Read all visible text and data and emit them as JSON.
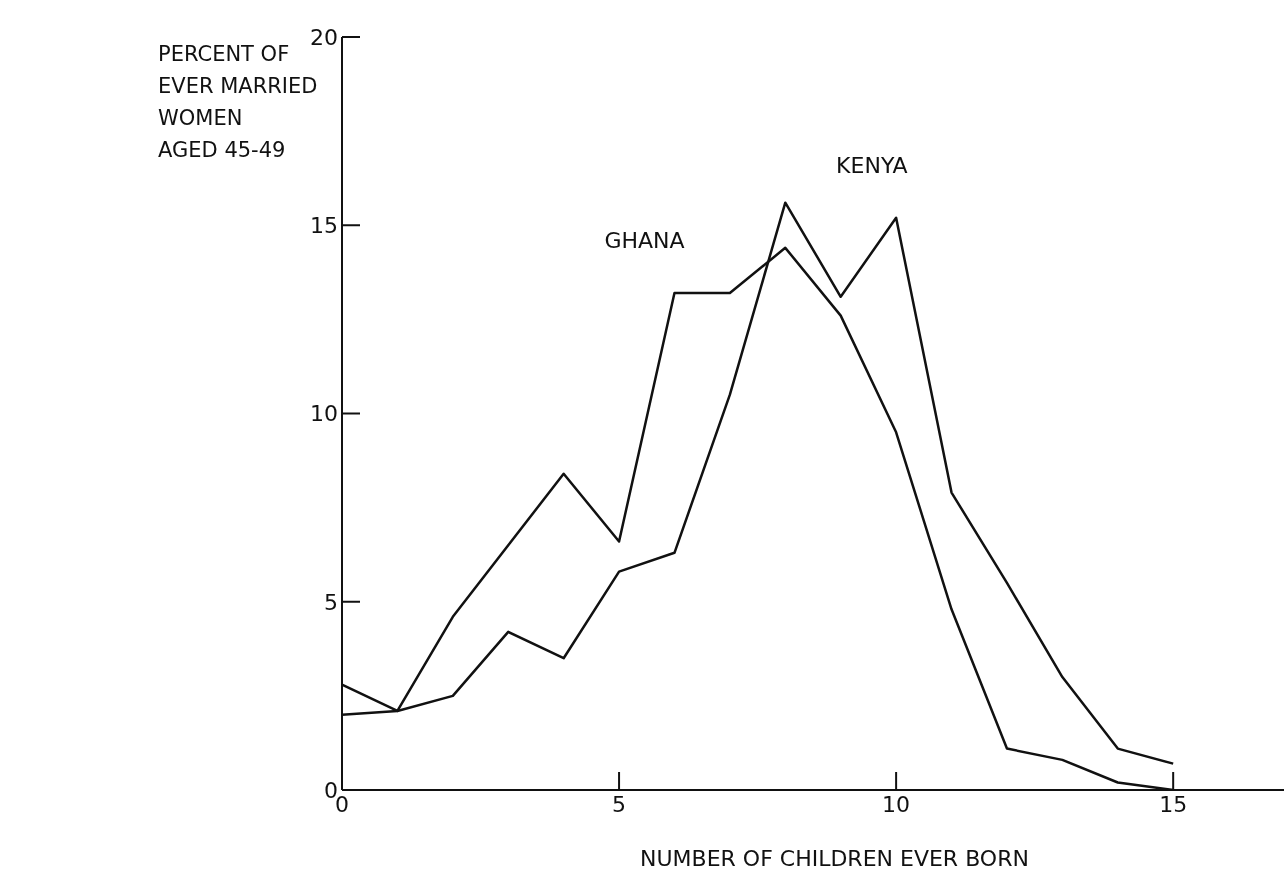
{
  "chart_data": {
    "type": "line",
    "ylabel": "PERCENT OF\nEVER MARRIED\nWOMEN\nAGED 45-49",
    "xlabel": "NUMBER OF CHILDREN EVER BORN",
    "x": [
      0,
      1,
      2,
      3,
      4,
      5,
      6,
      7,
      8,
      9,
      10,
      11,
      12,
      13,
      14,
      15
    ],
    "series": [
      {
        "name": "GHANA",
        "color": "#111111",
        "values": [
          2.8,
          2.1,
          4.6,
          6.5,
          8.4,
          6.6,
          13.2,
          13.2,
          14.4,
          12.6,
          9.5,
          4.8,
          1.1,
          0.8,
          0.2,
          0
        ]
      },
      {
        "name": "KENYA",
        "color": "#111111",
        "values": [
          2.0,
          2.1,
          2.5,
          4.2,
          3.5,
          5.8,
          6.3,
          10.5,
          15.6,
          13.1,
          15.2,
          7.9,
          5.5,
          3.0,
          1.1,
          0.7
        ]
      }
    ],
    "xlim": [
      0,
      17
    ],
    "xticks": [
      0,
      5,
      10,
      15
    ],
    "ylim": [
      0,
      20
    ],
    "yticks": [
      0,
      5,
      10,
      15,
      20
    ],
    "grid": false,
    "legend": false,
    "marker": "none",
    "line_style": "solid"
  }
}
